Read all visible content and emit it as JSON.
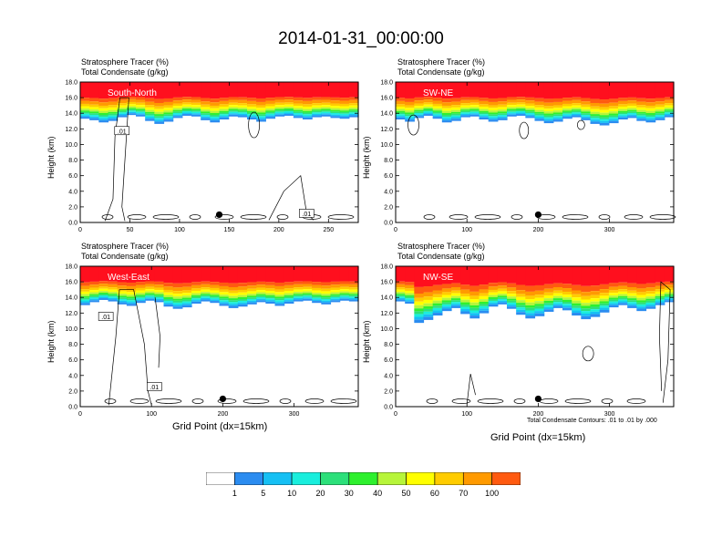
{
  "title": "2014-01-31_00:00:00",
  "colors": {
    "levels": [
      "#ffffff",
      "#2b8cf0",
      "#16c0f4",
      "#19eedd",
      "#2ce07a",
      "#2ef02e",
      "#b7f53a",
      "#ffff00",
      "#ffcc00",
      "#ff9a00",
      "#ff5a10",
      "#ff0f1e"
    ],
    "background": "#ffffff",
    "contour": "#000000"
  },
  "chart_data": [
    {
      "type": "heatmap",
      "name": "South-North",
      "label_var1": "Stratosphere Tracer   (%)",
      "label_var2": "Total Condensate   (g/kg)",
      "ylabel": "Height (km)",
      "xlabel": "",
      "xlim": [
        0,
        280
      ],
      "xticks": [
        0,
        50,
        100,
        150,
        200,
        250
      ],
      "ylim": [
        0,
        18
      ],
      "yticks": [
        "0.0",
        "2.0",
        "4.0",
        "6.0",
        "8.0",
        "10.0",
        "12.0",
        "14.0",
        "16.0",
        "18.0"
      ],
      "marker_x": 140,
      "contour_labels": [
        ".01",
        ".01"
      ],
      "tracer_base": [
        14.3,
        14.1,
        13.8,
        14.0,
        14.5,
        14.8,
        14.6,
        14.0,
        13.6,
        13.9,
        14.4,
        14.7,
        14.6,
        14.1,
        13.8,
        14.2,
        14.6,
        14.5,
        14.2,
        13.9,
        14.3,
        14.6,
        14.7,
        14.4,
        14.2,
        14.5,
        14.6,
        14.4,
        14.3,
        14.5
      ]
    },
    {
      "type": "heatmap",
      "name": "SW-NE",
      "label_var1": "Stratosphere Tracer   (%)",
      "label_var2": "Total Condensate   (g/kg)",
      "ylabel": "Height (km)",
      "xlabel": "",
      "xlim": [
        0,
        390
      ],
      "xticks": [
        0,
        100,
        200,
        300
      ],
      "ylim": [
        0,
        18
      ],
      "yticks": [
        "0.0",
        "2.0",
        "4.0",
        "6.0",
        "8.0",
        "10.0",
        "12.0",
        "14.0",
        "16.0",
        "18.0"
      ],
      "marker_x": 200,
      "contour_labels": [],
      "tracer_base": [
        14.2,
        13.9,
        14.4,
        14.7,
        14.3,
        13.8,
        14.0,
        14.5,
        14.6,
        14.2,
        13.9,
        14.1,
        14.6,
        14.7,
        14.4,
        14.0,
        13.7,
        13.9,
        14.3,
        14.5,
        14.1,
        13.6,
        13.4,
        13.7,
        14.2,
        14.4,
        14.0,
        13.8,
        14.1,
        14.5
      ]
    },
    {
      "type": "heatmap",
      "name": "West-East",
      "label_var1": "Stratosphere Tracer   (%)",
      "label_var2": "Total Condensate   (g/kg)",
      "ylabel": "Height (km)",
      "xlabel": "Grid Point (dx=15km)",
      "xlim": [
        0,
        390
      ],
      "xticks": [
        0,
        100,
        200,
        300
      ],
      "ylim": [
        0,
        18
      ],
      "yticks": [
        "0.0",
        "2.0",
        "4.0",
        "6.0",
        "8.0",
        "10.0",
        "12.0",
        "14.0",
        "16.0",
        "18.0"
      ],
      "marker_x": 200,
      "contour_labels": [
        ".01",
        ".01"
      ],
      "tracer_base": [
        14.0,
        14.4,
        14.7,
        14.5,
        14.1,
        13.9,
        14.3,
        14.6,
        14.4,
        13.8,
        13.5,
        13.7,
        14.2,
        14.5,
        14.3,
        13.9,
        13.6,
        13.8,
        14.1,
        14.4,
        14.2,
        13.9,
        14.2,
        14.5,
        14.6,
        14.3,
        14.1,
        14.4,
        14.6,
        14.5
      ]
    },
    {
      "type": "heatmap",
      "name": "NW-SE",
      "label_var1": "Stratosphere Tracer   (%)",
      "label_var2": "Total Condensate   (g/kg)",
      "ylabel": "Height (km)",
      "xlabel": "Grid Point (dx=15km)",
      "xlim": [
        0,
        390
      ],
      "xticks": [
        0,
        100,
        200,
        300
      ],
      "ylim": [
        0,
        18
      ],
      "yticks": [
        "0.0",
        "2.0",
        "4.0",
        "6.0",
        "8.0",
        "10.0",
        "12.0",
        "14.0",
        "16.0",
        "18.0"
      ],
      "marker_x": 200,
      "contour_labels": [],
      "note": "Total Condensate Contours: .01 to .01 by .000",
      "tracer_base": [
        14.5,
        14.2,
        11.6,
        12.0,
        12.6,
        13.2,
        13.6,
        12.8,
        12.2,
        12.9,
        13.8,
        14.1,
        13.5,
        12.7,
        12.2,
        12.5,
        13.1,
        13.6,
        13.3,
        12.6,
        12.1,
        12.4,
        13.0,
        13.7,
        14.0,
        13.6,
        13.2,
        13.5,
        14.0,
        14.4
      ]
    }
  ],
  "colorbar": {
    "labels": [
      "1",
      "5",
      "10",
      "20",
      "30",
      "40",
      "50",
      "60",
      "70",
      "100"
    ]
  }
}
